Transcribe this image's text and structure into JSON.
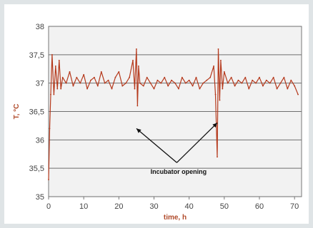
{
  "chart_data": {
    "type": "line",
    "xlabel": "time, h",
    "ylabel": "T, °C",
    "xlim": [
      0,
      72
    ],
    "ylim": [
      35,
      38
    ],
    "x_ticks": [
      0,
      10,
      20,
      30,
      40,
      50,
      60,
      70
    ],
    "x_tick_labels": [
      "0",
      "10",
      "20",
      "30",
      "40",
      "50",
      "60",
      "70"
    ],
    "y_ticks": [
      35,
      35.5,
      36,
      36.5,
      37,
      37.5,
      38
    ],
    "y_tick_labels": [
      "35",
      "35,5",
      "36",
      "36,5",
      "37",
      "37,5",
      "38"
    ],
    "grid": "horizontal",
    "annotation": {
      "text": "Incubator opening",
      "arrows_to": [
        [
          25,
          36.2
        ],
        [
          48,
          36.3
        ]
      ]
    },
    "colors": {
      "line": "#b5391c",
      "plot_bg": "#f2f2f2",
      "axis_text": "#b04a2a"
    },
    "series": [
      {
        "x": [
          0,
          0.3,
          0.6,
          1,
          1.5,
          2,
          2.5,
          3,
          3.5,
          4,
          5,
          6,
          7,
          8,
          9,
          10,
          11,
          12,
          13,
          14,
          15,
          16,
          17,
          18,
          19,
          20,
          21,
          22,
          23,
          24,
          24.5,
          25,
          25.3,
          25.6,
          26,
          27,
          28,
          29,
          30,
          31,
          32,
          33,
          34,
          35,
          36,
          37,
          38,
          39,
          40,
          41,
          42,
          43,
          44,
          45,
          46,
          47,
          47.5,
          48,
          48.3,
          48.7,
          49,
          49.5,
          50,
          51,
          52,
          53,
          54,
          55,
          56,
          57,
          58,
          59,
          60,
          61,
          62,
          63,
          64,
          65,
          66,
          67,
          68,
          69,
          70,
          71
        ],
        "y": [
          35.3,
          36.2,
          36.8,
          37.5,
          36.8,
          37.3,
          36.9,
          37.4,
          36.9,
          37.1,
          37.0,
          37.2,
          36.95,
          37.1,
          37.0,
          37.15,
          36.9,
          37.05,
          37.1,
          36.95,
          37.2,
          37.0,
          37.05,
          36.9,
          37.1,
          37.2,
          36.95,
          37.0,
          37.1,
          37.4,
          36.9,
          37.6,
          36.6,
          37.3,
          37.0,
          36.95,
          37.1,
          37.0,
          36.9,
          37.05,
          37.0,
          37.1,
          36.95,
          37.05,
          37.0,
          36.9,
          37.1,
          37.0,
          37.05,
          36.95,
          37.1,
          36.9,
          37.0,
          37.05,
          37.1,
          37.3,
          36.8,
          35.7,
          37.6,
          36.7,
          37.4,
          36.9,
          37.2,
          37.0,
          37.1,
          36.95,
          37.05,
          37.0,
          37.1,
          36.9,
          37.05,
          37.0,
          37.1,
          36.95,
          37.05,
          37.0,
          37.1,
          36.9,
          37.0,
          37.1,
          36.9,
          37.05,
          36.95,
          36.8
        ]
      }
    ]
  }
}
